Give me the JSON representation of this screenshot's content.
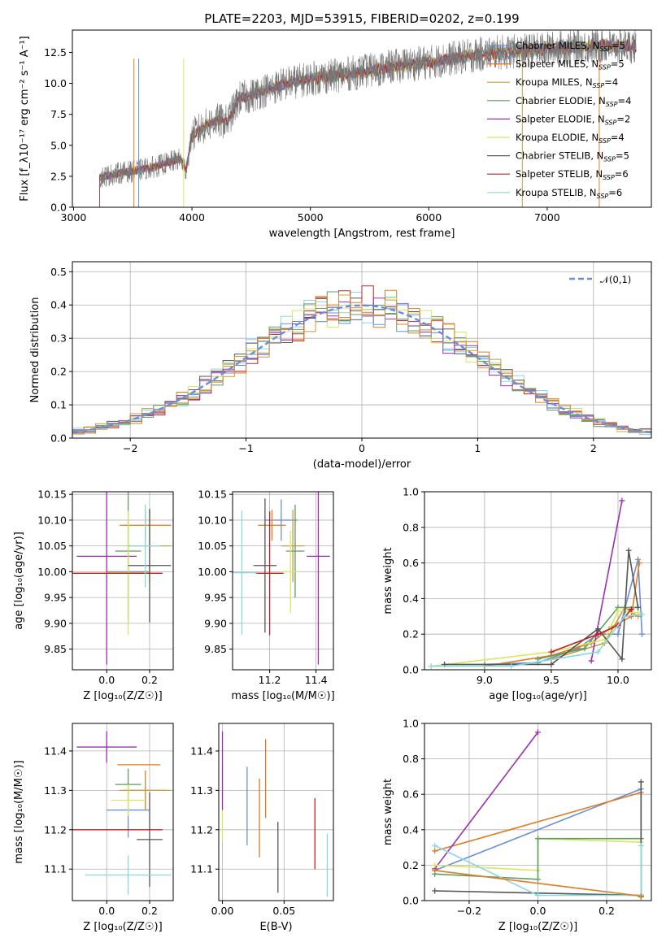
{
  "colors": [
    "#6a8fd6",
    "#e07b20",
    "#c89b3c",
    "#5e9e5e",
    "#9b30b0",
    "#d8e860",
    "#555555",
    "#c02020",
    "#88d8e0"
  ],
  "chart_data": [
    {
      "id": "spectrum",
      "type": "line",
      "title": "PLATE=2203, MJD=53915, FIBERID=0202, z=0.199",
      "xlabel": "wavelength [Angstrom, rest frame]",
      "ylabel": "Flux [f_λ10⁻¹⁷ erg cm⁻² s⁻¹ A⁻¹]",
      "xlim": [
        2990,
        7880
      ],
      "ylim": [
        0,
        14.3
      ],
      "xticks": [
        3000,
        4000,
        5000,
        6000,
        7000
      ],
      "yticks": [
        0.0,
        2.5,
        5.0,
        7.5,
        10.0,
        12.5
      ],
      "grid": false,
      "legend_position": "right",
      "legend": [
        "Chabrier MILES, N_SSP=5",
        "Salpeter MILES, N_SSP=5",
        "Kroupa MILES, N_SSP=4",
        "Chabrier ELODIE, N_SSP=4",
        "Salpeter ELODIE, N_SSP=2",
        "Kroupa ELODIE, N_SSP=4",
        "Chabrier STELIB, N_SSP=5",
        "Salpeter STELIB, N_SSP=6",
        "Kroupa STELIB, N_SSP=6"
      ],
      "continuum": {
        "x": [
          3220,
          3300,
          3400,
          3500,
          3600,
          3700,
          3800,
          3900,
          3950,
          4000,
          4100,
          4200,
          4300,
          4400,
          4500,
          4600,
          4800,
          5000,
          5200,
          5400,
          5600,
          5800,
          6000,
          6200,
          6400,
          6600,
          6800,
          7000,
          7200,
          7400,
          7600
        ],
        "y": [
          2.4,
          2.6,
          2.8,
          2.9,
          3.1,
          3.3,
          3.6,
          3.9,
          3.0,
          5.8,
          6.5,
          7.0,
          6.9,
          8.8,
          9.0,
          9.4,
          10.0,
          10.4,
          10.6,
          10.9,
          11.2,
          11.5,
          11.7,
          12.0,
          12.3,
          12.5,
          12.6,
          12.8,
          12.9,
          13.0,
          13.0
        ]
      },
      "data_edges": [
        3220,
        7750
      ]
    },
    {
      "id": "residuals",
      "type": "line",
      "xlabel": "(data-model)/error",
      "ylabel": "Normed distribution",
      "xlim": [
        -2.5,
        2.5
      ],
      "ylim": [
        0,
        0.53
      ],
      "xticks": [
        -2,
        -1,
        0,
        1,
        2
      ],
      "yticks": [
        0.0,
        0.1,
        0.2,
        0.3,
        0.4,
        0.5
      ],
      "grid": true,
      "legend": [
        "𝒩(0,1)"
      ],
      "legend_position": "top-right",
      "normal_curve": {
        "mean": 0,
        "std": 1
      }
    },
    {
      "id": "age_vs_Z",
      "type": "scatter",
      "xlabel": "Z [log₁₀(Z/Z☉)]",
      "ylabel": "age  [log₁₀(age/yr)]",
      "xlim": [
        -0.16,
        0.31
      ],
      "ylim": [
        9.81,
        10.155
      ],
      "xticks": [
        0.0,
        0.2
      ],
      "yticks": [
        9.85,
        9.9,
        9.95,
        10.0,
        10.05,
        10.1,
        10.15
      ],
      "grid": true,
      "points": [
        {
          "x": 0.1,
          "y": 10.0,
          "xerr": 0.1,
          "yerr": 0.1,
          "c": 0
        },
        {
          "x": 0.18,
          "y": 10.09,
          "xerr": 0.12,
          "yerr": 0.03,
          "c": 1
        },
        {
          "x": 0.2,
          "y": 10.05,
          "xerr": 0.1,
          "yerr": 0.07,
          "c": 2
        },
        {
          "x": 0.1,
          "y": 10.04,
          "xerr": 0.06,
          "yerr": 0.13,
          "c": 3
        },
        {
          "x": 0.0,
          "y": 10.03,
          "xerr": 0.14,
          "yerr": 0.21,
          "c": 4
        },
        {
          "x": 0.1,
          "y": 9.998,
          "xerr": 0.1,
          "yerr": 0.12,
          "c": 5
        },
        {
          "x": 0.2,
          "y": 10.012,
          "xerr": 0.1,
          "yerr": 0.11,
          "c": 6
        },
        {
          "x": 0.0,
          "y": 9.997,
          "xerr": 0.26,
          "yerr": 0.0,
          "c": 7
        },
        {
          "x": 0.18,
          "y": 10.05,
          "xerr": 0.07,
          "yerr": 0.08,
          "c": 8
        }
      ]
    },
    {
      "id": "age_vs_mass",
      "type": "scatter",
      "xlabel": "mass [log₁₀(M/M☉)]",
      "ylabel": "",
      "xlim": [
        11.04,
        11.475
      ],
      "ylim": [
        9.81,
        10.155
      ],
      "xticks": [
        11.2,
        11.4
      ],
      "yticks": [
        9.85,
        9.9,
        9.95,
        10.0,
        10.05,
        10.1,
        10.15
      ],
      "grid": true,
      "points": [
        {
          "x": 11.25,
          "y": 10.1,
          "xerr": 0.07,
          "yerr": 0.04,
          "c": 0
        },
        {
          "x": 11.21,
          "y": 10.09,
          "xerr": 0.06,
          "yerr": 0.03,
          "c": 1
        },
        {
          "x": 11.3,
          "y": 10.05,
          "xerr": 0.05,
          "yerr": 0.07,
          "c": 2
        },
        {
          "x": 11.31,
          "y": 10.04,
          "xerr": 0.04,
          "yerr": 0.09,
          "c": 3
        },
        {
          "x": 11.41,
          "y": 10.03,
          "xerr": 0.05,
          "yerr": 0.21,
          "c": 4
        },
        {
          "x": 11.29,
          "y": 10.0,
          "xerr": 0.04,
          "yerr": 0.08,
          "c": 5
        },
        {
          "x": 11.18,
          "y": 10.012,
          "xerr": 0.05,
          "yerr": 0.13,
          "c": 6
        },
        {
          "x": 11.2,
          "y": 9.997,
          "xerr": 0.06,
          "yerr": 0.12,
          "c": 7
        },
        {
          "x": 11.08,
          "y": 9.998,
          "xerr": 0.07,
          "yerr": 0.12,
          "c": 8
        }
      ]
    },
    {
      "id": "weight_vs_age",
      "type": "line",
      "xlabel": "age  [log₁₀(age/yr)]",
      "ylabel": "mass weight",
      "xlim": [
        8.55,
        10.25
      ],
      "ylim": [
        0,
        1.0
      ],
      "xticks": [
        9.0,
        9.5,
        10.0
      ],
      "yticks": [
        0.0,
        0.2,
        0.4,
        0.6,
        0.8,
        1.0
      ],
      "grid": true,
      "series": [
        {
          "c": 0,
          "x": [
            9.0,
            9.4,
            9.7,
            9.85,
            10.0,
            10.15,
            10.18
          ],
          "y": [
            0.03,
            0.04,
            0.12,
            0.2,
            0.2,
            0.62,
            0.2
          ]
        },
        {
          "c": 1,
          "x": [
            9.0,
            9.5,
            9.8,
            9.95,
            10.1,
            10.16
          ],
          "y": [
            0.02,
            0.08,
            0.15,
            0.24,
            0.3,
            0.6
          ]
        },
        {
          "c": 2,
          "x": [
            9.5,
            9.9,
            10.05,
            10.15
          ],
          "y": [
            0.06,
            0.15,
            0.35,
            0.3
          ]
        },
        {
          "c": 3,
          "x": [
            9.4,
            9.75,
            10.0,
            10.15
          ],
          "y": [
            0.06,
            0.12,
            0.35,
            0.35
          ]
        },
        {
          "c": 4,
          "x": [
            9.8,
            10.03
          ],
          "y": [
            0.05,
            0.95
          ]
        },
        {
          "c": 5,
          "x": [
            8.6,
            9.5,
            9.9,
            10.0,
            10.15
          ],
          "y": [
            0.02,
            0.1,
            0.17,
            0.33,
            0.32
          ]
        },
        {
          "c": 6,
          "x": [
            8.7,
            9.5,
            9.85,
            10.03,
            10.08,
            10.15
          ],
          "y": [
            0.03,
            0.03,
            0.23,
            0.06,
            0.67,
            0.35
          ]
        },
        {
          "c": 7,
          "x": [
            9.5,
            9.85,
            10.0,
            10.1
          ],
          "y": [
            0.1,
            0.2,
            0.25,
            0.34
          ]
        },
        {
          "c": 8,
          "x": [
            8.6,
            9.2,
            9.85,
            10.05,
            10.18
          ],
          "y": [
            0.02,
            0.02,
            0.1,
            0.3,
            0.31
          ]
        }
      ]
    },
    {
      "id": "mass_vs_Z",
      "type": "scatter",
      "xlabel": "Z [log₁₀(Z/Z☉)]",
      "ylabel": "mass [log₁₀(M/M☉)]",
      "xlim": [
        -0.16,
        0.31
      ],
      "ylim": [
        11.02,
        11.47
      ],
      "xticks": [
        0.0,
        0.2
      ],
      "yticks": [
        11.1,
        11.2,
        11.3,
        11.4
      ],
      "grid": true,
      "points": [
        {
          "x": 0.1,
          "y": 11.25,
          "xerr": 0.1,
          "yerr": 0.07,
          "c": 0
        },
        {
          "x": 0.18,
          "y": 11.3,
          "xerr": 0.1,
          "yerr": 0.05,
          "c": 1
        },
        {
          "x": 0.18,
          "y": 11.3,
          "xerr": 0.12,
          "yerr": 0.05,
          "c": 2
        },
        {
          "x": 0.1,
          "y": 11.315,
          "xerr": 0.06,
          "yerr": 0.04,
          "c": 3
        },
        {
          "x": -0.0,
          "y": 11.41,
          "xerr": 0.14,
          "yerr": 0.04,
          "c": 4
        },
        {
          "x": 0.1,
          "y": 11.275,
          "xerr": 0.08,
          "yerr": 0.04,
          "c": 5
        },
        {
          "x": 0.2,
          "y": 11.175,
          "xerr": 0.06,
          "yerr": 0.12,
          "c": 6
        },
        {
          "x": 0.0,
          "y": 11.2,
          "xerr": 0.26,
          "yerr": 0.0,
          "c": 7
        },
        {
          "x": 0.1,
          "y": 11.085,
          "xerr": 0.2,
          "yerr": 0.05,
          "c": 8
        },
        {
          "x": 0.15,
          "y": 11.365,
          "xerr": 0.1,
          "yerr": 0.0,
          "c": 1
        }
      ]
    },
    {
      "id": "mass_vs_EBV",
      "type": "scatter",
      "xlabel": "E(B-V)",
      "ylabel": "",
      "xlim": [
        -0.003,
        0.09
      ],
      "ylim": [
        11.02,
        11.47
      ],
      "xticks": [
        0.0,
        0.05
      ],
      "yticks": [
        11.1,
        11.2,
        11.3,
        11.4
      ],
      "grid": true,
      "points": [
        {
          "x": 0.02,
          "y": 11.26,
          "yerr": 0.1,
          "c": 0
        },
        {
          "x": 0.03,
          "y": 11.23,
          "yerr": 0.1,
          "c": 1
        },
        {
          "x": 0.0,
          "y": 11.27,
          "yerr": 0.1,
          "c": 5
        },
        {
          "x": 0.0,
          "y": 11.35,
          "yerr": 0.1,
          "c": 4
        },
        {
          "x": 0.045,
          "y": 11.13,
          "yerr": 0.09,
          "c": 6
        },
        {
          "x": 0.035,
          "y": 11.33,
          "yerr": 0.1,
          "c": 1
        },
        {
          "x": 0.085,
          "y": 11.11,
          "yerr": 0.08,
          "c": 8
        },
        {
          "x": 0.075,
          "y": 11.19,
          "yerr": 0.09,
          "c": 7
        }
      ]
    },
    {
      "id": "weight_vs_Z",
      "type": "line",
      "xlabel": "Z [log₁₀(Z/Z☉)]",
      "ylabel": "mass weight",
      "xlim": [
        -0.33,
        0.33
      ],
      "ylim": [
        0,
        1.0
      ],
      "xticks": [
        -0.2,
        0.0,
        0.2
      ],
      "yticks": [
        0.0,
        0.2,
        0.4,
        0.6,
        0.8,
        1.0
      ],
      "grid": true,
      "series": [
        {
          "c": 0,
          "x": [
            -0.3,
            0.3,
            0.3
          ],
          "y": [
            0.17,
            0.63,
            0.03
          ]
        },
        {
          "c": 1,
          "x": [
            -0.3,
            0.3
          ],
          "y": [
            0.28,
            0.61
          ]
        },
        {
          "c": 4,
          "x": [
            -0.3,
            0.0
          ],
          "y": [
            0.18,
            0.95
          ]
        },
        {
          "c": 5,
          "x": [
            -0.3,
            0.0,
            0.0,
            0.3
          ],
          "y": [
            0.2,
            0.17,
            0.35,
            0.33
          ]
        },
        {
          "c": 3,
          "x": [
            -0.3,
            0.0,
            0.0,
            0.3,
            0.3
          ],
          "y": [
            0.15,
            0.12,
            0.35,
            0.35,
            0.02
          ]
        },
        {
          "c": 6,
          "x": [
            -0.3,
            0.3,
            0.3
          ],
          "y": [
            0.055,
            0.03,
            0.67
          ]
        },
        {
          "c": 8,
          "x": [
            -0.3,
            0.0,
            0.3,
            0.3
          ],
          "y": [
            0.31,
            0.03,
            0.03,
            0.31
          ]
        },
        {
          "c": 1,
          "x": [
            -0.3,
            0.3
          ],
          "y": [
            0.17,
            0.025
          ]
        }
      ]
    }
  ]
}
